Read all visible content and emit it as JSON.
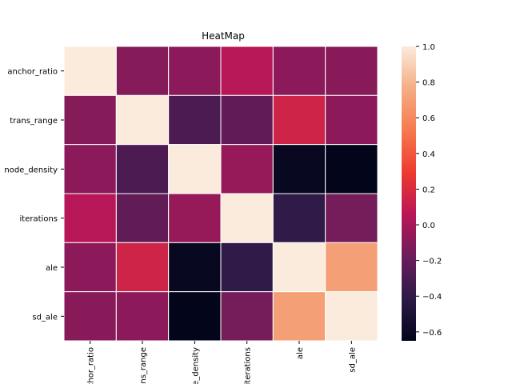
{
  "chart_data": {
    "type": "heatmap",
    "title": "HeatMap",
    "row_labels": [
      "anchor_ratio",
      "trans_range",
      "node_density",
      "iterations",
      "ale",
      "sd_ale"
    ],
    "col_labels": [
      "anchor_ratio",
      "trans_range",
      "node_density",
      "iterations",
      "ale",
      "sd_ale"
    ],
    "values": [
      [
        1.0,
        -0.1,
        -0.08,
        0.05,
        -0.08,
        -0.09
      ],
      [
        -0.1,
        1.0,
        -0.3,
        -0.22,
        0.15,
        -0.08
      ],
      [
        -0.08,
        -0.3,
        1.0,
        -0.05,
        -0.62,
        -0.65
      ],
      [
        0.05,
        -0.22,
        -0.05,
        1.0,
        -0.4,
        -0.15
      ],
      [
        -0.08,
        0.15,
        -0.62,
        -0.4,
        1.0,
        0.7
      ],
      [
        -0.09,
        -0.08,
        -0.65,
        -0.15,
        0.7,
        1.0
      ]
    ],
    "colorbar": {
      "min": -0.65,
      "max": 1.0,
      "ticks": [
        1.0,
        0.8,
        0.6,
        0.4,
        0.2,
        0.0,
        -0.2,
        -0.4,
        -0.6
      ],
      "tick_labels": [
        "1.0",
        "0.8",
        "0.6",
        "0.4",
        "0.2",
        "0.0",
        "−0.2",
        "−0.4",
        "−0.6"
      ]
    },
    "colormap": [
      "#03051a",
      "#2b1a47",
      "#6c1d5c",
      "#b91657",
      "#ee3a2e",
      "#f57a4f",
      "#f5ad84",
      "#faebdd"
    ],
    "grid": false,
    "legend": "colorbar-right"
  }
}
